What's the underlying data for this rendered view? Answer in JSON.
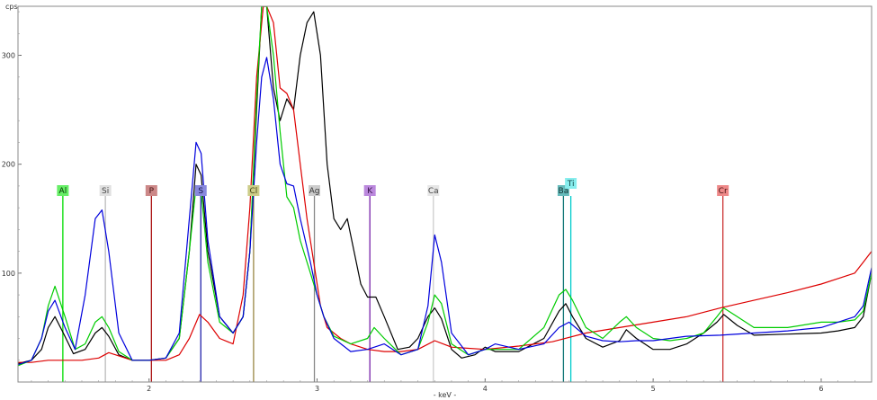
{
  "chart_data": {
    "type": "line",
    "xlabel": "- keV -",
    "ylabel": "cps",
    "xlim": [
      1.22,
      6.3
    ],
    "ylim": [
      0,
      345
    ],
    "x_ticks": [
      2,
      3,
      4,
      5,
      6
    ],
    "x_tick_labels": [
      "2",
      "3",
      "4",
      "5",
      "6"
    ],
    "y_ticks": [
      100,
      200,
      300
    ],
    "y_tick_labels": [
      "100",
      "200",
      "300"
    ],
    "grid": false,
    "series": [
      {
        "color": "#000000",
        "x": [
          1.22,
          1.3,
          1.36,
          1.4,
          1.44,
          1.49,
          1.55,
          1.62,
          1.68,
          1.72,
          1.76,
          1.82,
          1.9,
          2.0,
          2.1,
          2.18,
          2.24,
          2.28,
          2.31,
          2.35,
          2.42,
          2.5,
          2.56,
          2.6,
          2.64,
          2.67,
          2.7,
          2.74,
          2.78,
          2.82,
          2.86,
          2.9,
          2.94,
          2.98,
          3.02,
          3.06,
          3.1,
          3.14,
          3.18,
          3.22,
          3.26,
          3.3,
          3.35,
          3.4,
          3.48,
          3.55,
          3.6,
          3.66,
          3.7,
          3.74,
          3.8,
          3.86,
          3.94,
          4.0,
          4.06,
          4.2,
          4.35,
          4.44,
          4.48,
          4.52,
          4.6,
          4.7,
          4.8,
          4.84,
          4.9,
          5.0,
          5.1,
          5.2,
          5.3,
          5.38,
          5.42,
          5.5,
          5.6,
          5.8,
          6.0,
          6.1,
          6.2,
          6.25,
          6.3
        ],
        "y": [
          17,
          20,
          30,
          50,
          60,
          45,
          26,
          30,
          45,
          50,
          42,
          25,
          20,
          20,
          22,
          40,
          120,
          200,
          190,
          120,
          60,
          45,
          60,
          120,
          250,
          345,
          345,
          270,
          240,
          260,
          250,
          300,
          330,
          340,
          300,
          200,
          150,
          140,
          150,
          120,
          90,
          78,
          78,
          60,
          30,
          32,
          40,
          60,
          68,
          58,
          30,
          22,
          25,
          32,
          28,
          28,
          40,
          65,
          72,
          60,
          40,
          32,
          38,
          48,
          40,
          30,
          30,
          35,
          45,
          55,
          62,
          52,
          43,
          44,
          45,
          47,
          50,
          60,
          100
        ]
      },
      {
        "color": "#dd0000",
        "x": [
          1.22,
          1.3,
          1.4,
          1.5,
          1.6,
          1.7,
          1.76,
          1.82,
          1.9,
          2.0,
          2.1,
          2.18,
          2.24,
          2.3,
          2.35,
          2.42,
          2.5,
          2.56,
          2.6,
          2.64,
          2.68,
          2.7,
          2.74,
          2.78,
          2.82,
          2.86,
          2.9,
          2.94,
          2.98,
          3.02,
          3.06,
          3.1,
          3.14,
          3.2,
          3.3,
          3.4,
          3.5,
          3.6,
          3.7,
          3.8,
          4.0,
          4.2,
          4.4,
          4.6,
          4.8,
          5.0,
          5.2,
          5.4,
          5.6,
          5.8,
          6.0,
          6.1,
          6.2,
          6.25,
          6.3
        ],
        "y": [
          18,
          18,
          20,
          20,
          20,
          22,
          27,
          24,
          20,
          20,
          20,
          25,
          40,
          62,
          55,
          40,
          35,
          80,
          160,
          280,
          345,
          345,
          330,
          270,
          265,
          250,
          200,
          150,
          110,
          70,
          50,
          45,
          40,
          35,
          30,
          28,
          28,
          30,
          38,
          32,
          30,
          33,
          37,
          45,
          50,
          55,
          60,
          68,
          75,
          82,
          90,
          95,
          100,
          110,
          120
        ]
      },
      {
        "color": "#00cc00",
        "x": [
          1.22,
          1.3,
          1.36,
          1.4,
          1.44,
          1.5,
          1.56,
          1.62,
          1.68,
          1.72,
          1.76,
          1.82,
          1.9,
          2.0,
          2.1,
          2.18,
          2.24,
          2.28,
          2.31,
          2.35,
          2.42,
          2.5,
          2.56,
          2.6,
          2.64,
          2.67,
          2.7,
          2.74,
          2.78,
          2.82,
          2.86,
          2.9,
          2.96,
          3.0,
          3.04,
          3.1,
          3.2,
          3.3,
          3.34,
          3.4,
          3.5,
          3.6,
          3.66,
          3.7,
          3.74,
          3.8,
          3.9,
          4.0,
          4.2,
          4.35,
          4.44,
          4.48,
          4.52,
          4.6,
          4.7,
          4.8,
          4.84,
          4.9,
          5.0,
          5.1,
          5.2,
          5.3,
          5.38,
          5.42,
          5.5,
          5.6,
          5.8,
          6.0,
          6.1,
          6.2,
          6.25,
          6.3
        ],
        "y": [
          15,
          20,
          40,
          70,
          88,
          60,
          30,
          35,
          55,
          60,
          50,
          28,
          20,
          20,
          22,
          40,
          120,
          180,
          175,
          110,
          55,
          45,
          60,
          120,
          260,
          345,
          345,
          300,
          230,
          170,
          160,
          130,
          100,
          80,
          60,
          42,
          35,
          40,
          50,
          40,
          25,
          30,
          55,
          80,
          72,
          35,
          25,
          30,
          30,
          50,
          80,
          85,
          75,
          50,
          40,
          55,
          60,
          50,
          40,
          38,
          40,
          45,
          60,
          68,
          60,
          50,
          50,
          55,
          55,
          57,
          65,
          100
        ]
      },
      {
        "color": "#0000dd",
        "x": [
          1.22,
          1.3,
          1.36,
          1.4,
          1.44,
          1.5,
          1.56,
          1.62,
          1.68,
          1.72,
          1.76,
          1.82,
          1.9,
          2.0,
          2.1,
          2.18,
          2.24,
          2.28,
          2.31,
          2.35,
          2.42,
          2.5,
          2.56,
          2.6,
          2.64,
          2.67,
          2.7,
          2.74,
          2.78,
          2.82,
          2.86,
          2.9,
          2.96,
          3.0,
          3.04,
          3.1,
          3.2,
          3.3,
          3.4,
          3.5,
          3.6,
          3.66,
          3.7,
          3.74,
          3.8,
          3.9,
          4.0,
          4.06,
          4.2,
          4.35,
          4.44,
          4.5,
          4.6,
          4.7,
          4.8,
          4.9,
          5.0,
          5.2,
          5.4,
          5.6,
          5.8,
          6.0,
          6.1,
          6.2,
          6.25,
          6.3
        ],
        "y": [
          16,
          20,
          40,
          65,
          75,
          50,
          30,
          80,
          150,
          158,
          120,
          45,
          20,
          20,
          22,
          45,
          150,
          220,
          210,
          130,
          60,
          45,
          60,
          120,
          220,
          280,
          298,
          260,
          200,
          182,
          180,
          150,
          110,
          80,
          60,
          40,
          28,
          30,
          35,
          25,
          30,
          70,
          135,
          110,
          45,
          25,
          30,
          35,
          30,
          35,
          50,
          55,
          42,
          38,
          37,
          38,
          38,
          42,
          43,
          45,
          47,
          50,
          55,
          60,
          70,
          105
        ]
      }
    ],
    "element_lines": [
      {
        "label": "Al",
        "energy": 1.487,
        "color": "#00dd00",
        "label_bg": "#66ee66",
        "text_color": "#003300"
      },
      {
        "label": "Si",
        "energy": 1.74,
        "color": "#bbbbbb",
        "label_bg": "#e0e0e0",
        "text_color": "#444444"
      },
      {
        "label": "P",
        "energy": 2.014,
        "color": "#aa1111",
        "label_bg": "#cc8888",
        "text_color": "#441111"
      },
      {
        "label": "S",
        "energy": 2.308,
        "color": "#2222aa",
        "label_bg": "#8888dd",
        "text_color": "#111144"
      },
      {
        "label": "Cl",
        "energy": 2.622,
        "color": "#998844",
        "label_bg": "#cccc88",
        "text_color": "#444411"
      },
      {
        "label": "Ag",
        "energy": 2.984,
        "color": "#888888",
        "label_bg": "#cccccc",
        "text_color": "#333333"
      },
      {
        "label": "K",
        "energy": 3.314,
        "color": "#7722aa",
        "label_bg": "#bb88dd",
        "text_color": "#331144"
      },
      {
        "label": "Ca",
        "energy": 3.692,
        "color": "#cccccc",
        "label_bg": "#e6e6e6",
        "text_color": "#444444"
      },
      {
        "label": "Ba",
        "energy": 4.466,
        "color": "#117777",
        "label_bg": "#66bbbb",
        "text_color": "#113333"
      },
      {
        "label": "Ti",
        "energy": 4.51,
        "color": "#00cccc",
        "label_bg": "#88eeee",
        "text_color": "#114444"
      },
      {
        "label": "Cr",
        "energy": 5.415,
        "color": "#cc3333",
        "label_bg": "#ee8888",
        "text_color": "#441111"
      }
    ]
  }
}
